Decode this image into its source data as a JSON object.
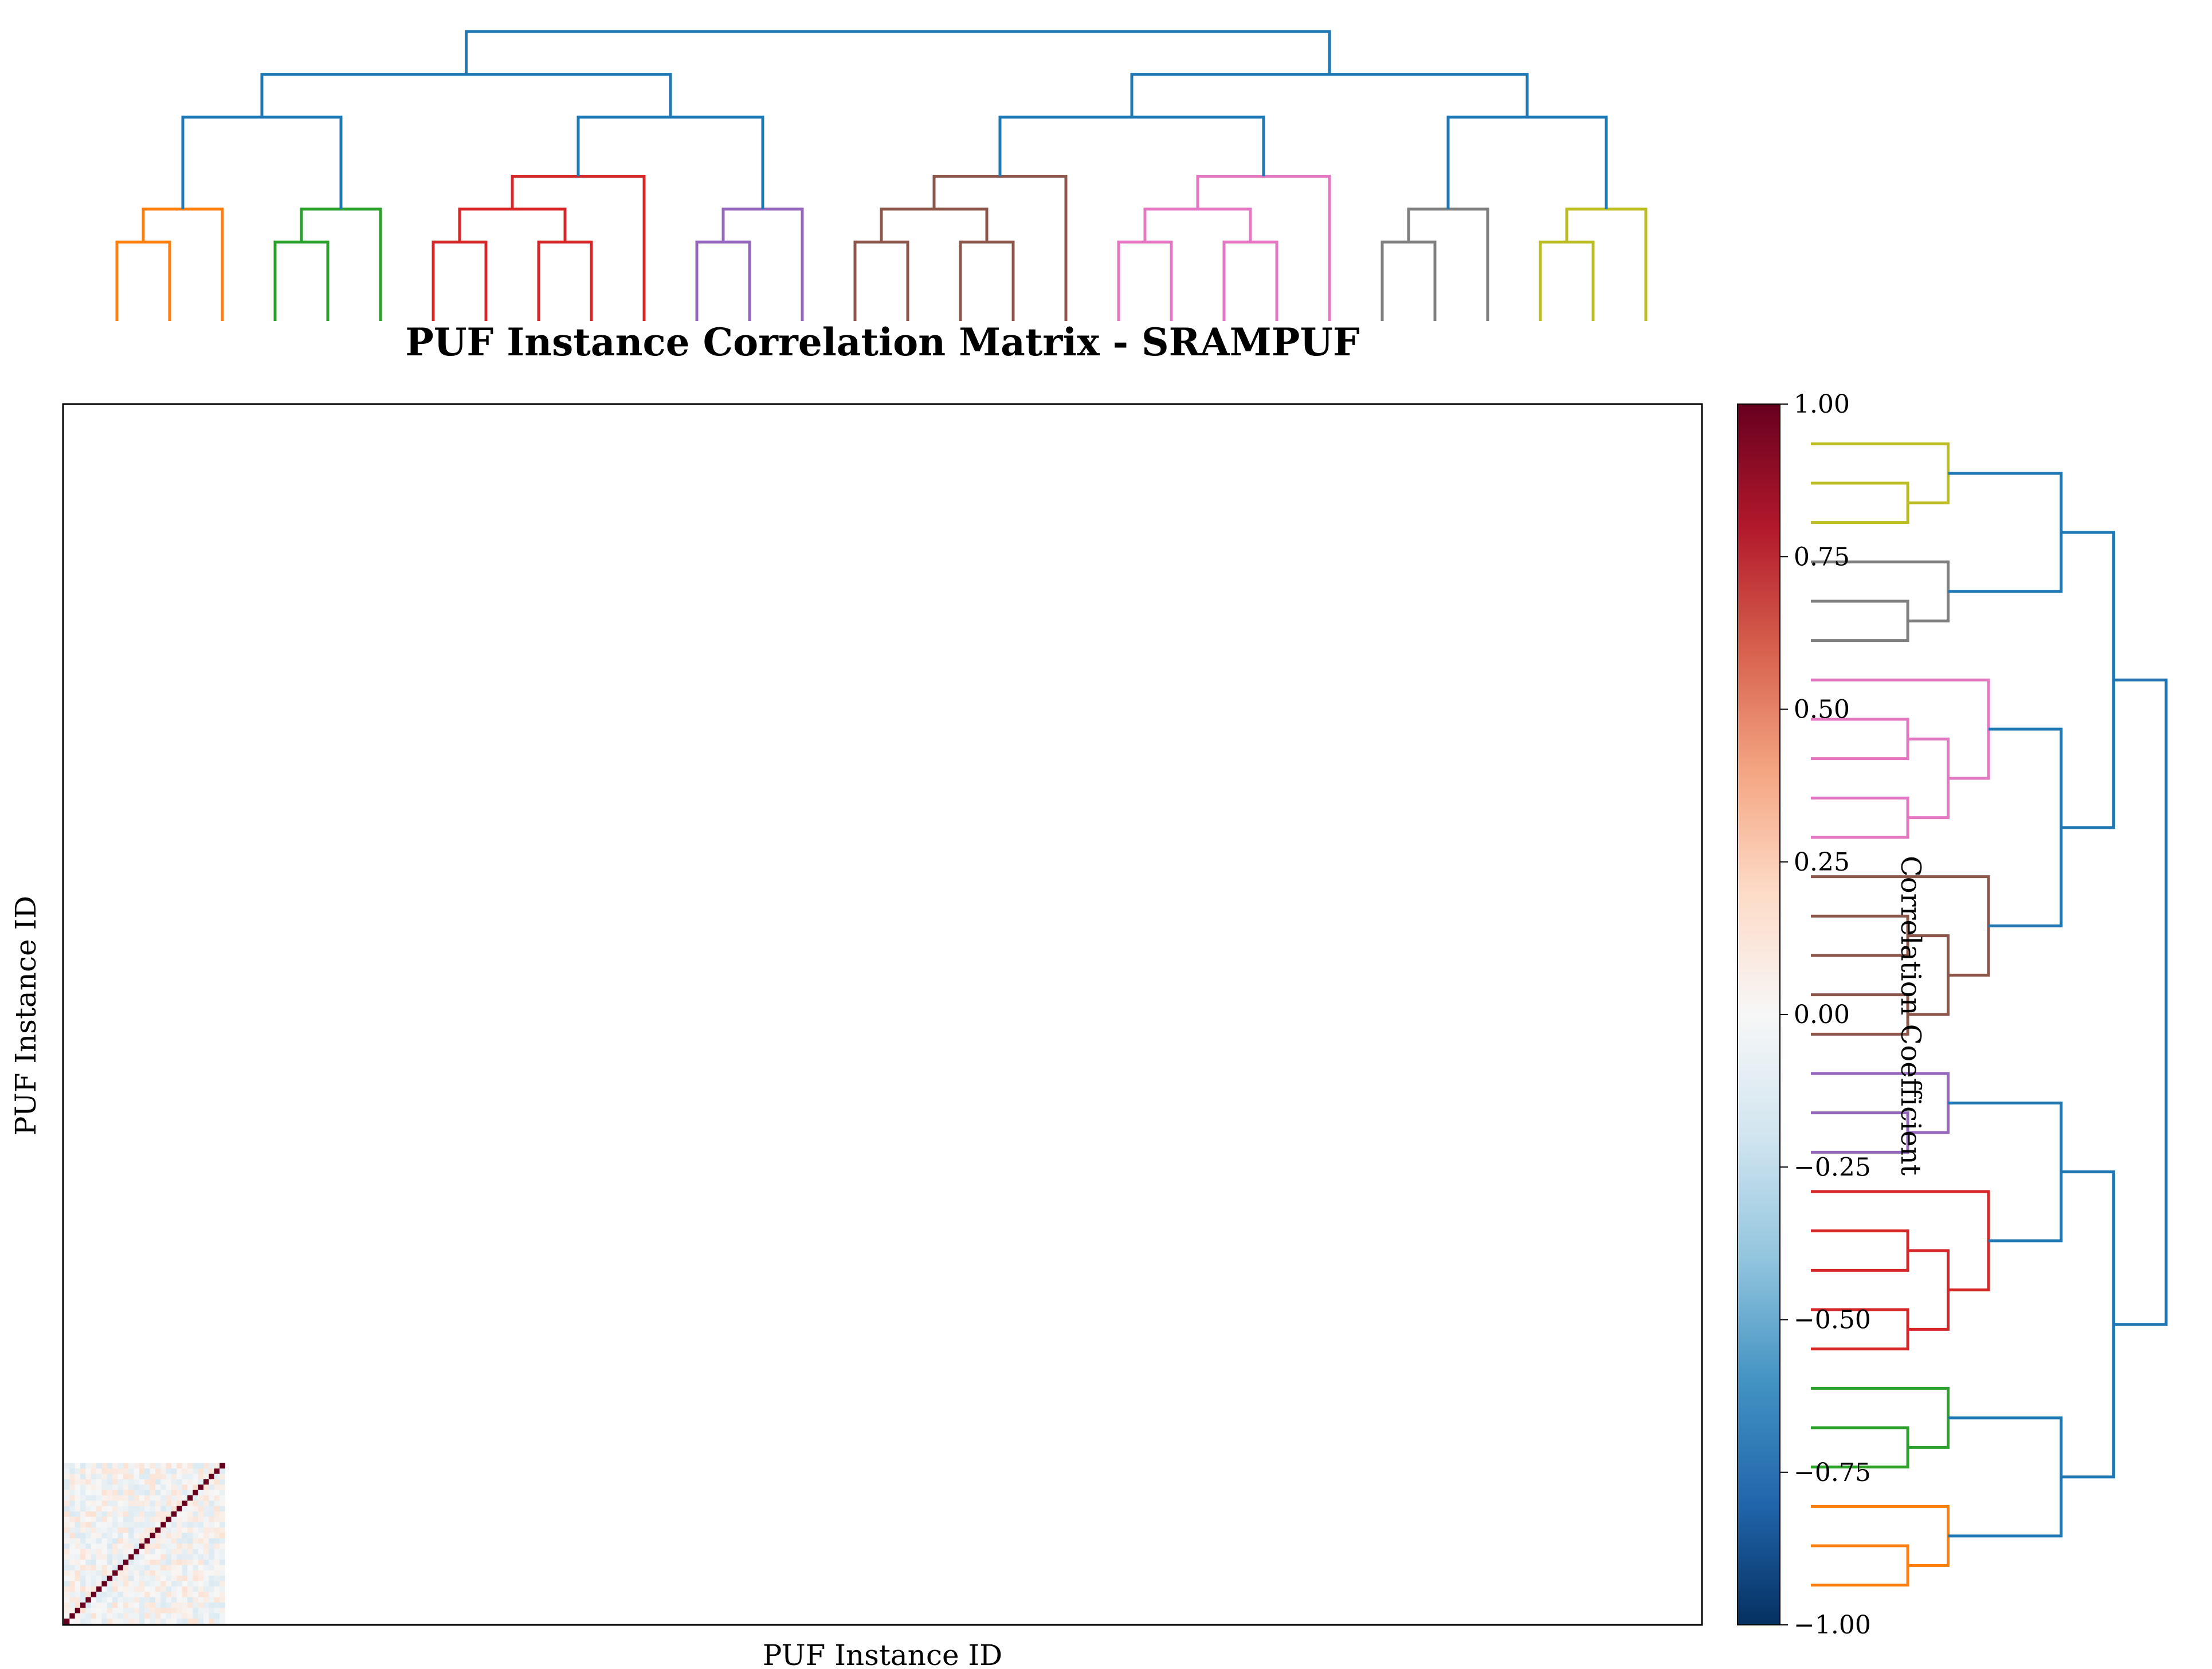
{
  "chart_data": {
    "type": "heatmap",
    "title": "PUF Instance Correlation Matrix - SRAMPUF",
    "xlabel": "PUF Instance ID",
    "ylabel": "PUF Instance ID",
    "colorbar": {
      "label": "Correlation Coefficient",
      "range": [
        -1.0,
        1.0
      ],
      "ticks": [
        "1.00",
        "0.75",
        "0.50",
        "0.25",
        "0.00",
        "−0.25",
        "−0.50",
        "−0.75",
        "−1.00"
      ],
      "colormap": [
        "#67001f",
        "#b2182b",
        "#d6604d",
        "#f4a582",
        "#fddbc7",
        "#f7f7f7",
        "#d1e5f0",
        "#92c5de",
        "#4393c3",
        "#2166ac",
        "#053061"
      ]
    },
    "matrix": {
      "size": 30,
      "diagonal_value": 1.0,
      "off_diagonal_range": [
        -0.15,
        0.15
      ],
      "occupied_extent": "bottom-left corner"
    },
    "dendrogram": {
      "leaves": 30,
      "clusters": [
        {
          "leaves": 3,
          "color": "#ff7f0e"
        },
        {
          "leaves": 3,
          "color": "#2ca02c"
        },
        {
          "leaves": 5,
          "color": "#d62728"
        },
        {
          "leaves": 3,
          "color": "#9467bd"
        },
        {
          "leaves": 5,
          "color": "#8c564b"
        },
        {
          "leaves": 5,
          "color": "#e377c2"
        },
        {
          "leaves": 3,
          "color": "#7f7f7f"
        },
        {
          "leaves": 3,
          "color": "#bcbd22"
        }
      ],
      "link_color": "#1f77b4"
    },
    "grid": false
  }
}
